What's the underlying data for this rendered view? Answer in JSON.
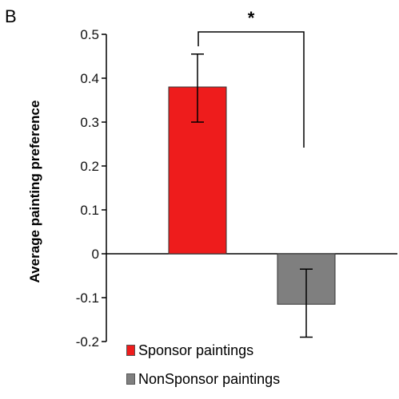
{
  "panel_label": "B",
  "chart_data": {
    "type": "bar",
    "title": "",
    "xlabel": "",
    "ylabel": "Average painting preference",
    "ylim": [
      -0.2,
      0.5
    ],
    "yticks": [
      -0.2,
      -0.1,
      0,
      0.1,
      0.2,
      0.3,
      0.4,
      0.5
    ],
    "ytick_labels": [
      "-0.2",
      "-0.1",
      "0",
      "0.1",
      "0.2",
      "0.3",
      "0.4",
      "0.5"
    ],
    "grid": false,
    "legend_position": "bottom",
    "categories": [
      "Sponsor paintings",
      "NonSponsor paintings"
    ],
    "values": [
      0.38,
      -0.115
    ],
    "error_low": [
      0.3,
      -0.19
    ],
    "error_high": [
      0.455,
      -0.035
    ],
    "colors": [
      "#ee1c1c",
      "#7f7f7f"
    ],
    "significance": {
      "label": "*",
      "between": [
        0,
        1
      ]
    }
  },
  "legend": {
    "items": [
      {
        "label": "Sponsor paintings",
        "color": "#ee1c1c"
      },
      {
        "label": "NonSponsor paintings",
        "color": "#7f7f7f"
      }
    ]
  }
}
